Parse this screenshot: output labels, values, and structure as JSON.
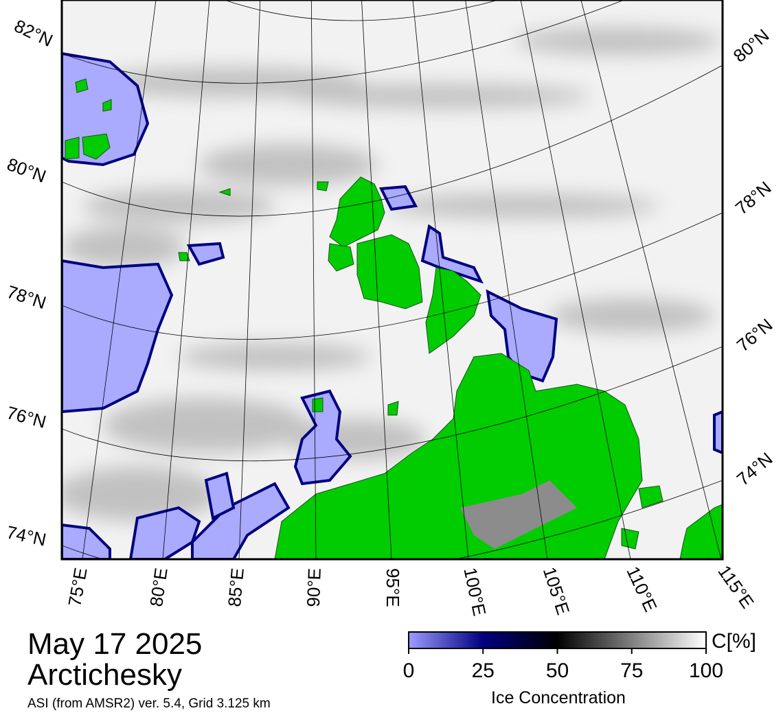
{
  "map": {
    "lat_labels_left": [
      "82°N",
      "80°N",
      "78°N",
      "76°N",
      "74°N"
    ],
    "lat_labels_right": [
      "80°N",
      "78°N",
      "76°N",
      "74°N"
    ],
    "lon_labels": [
      "75°E",
      "80°E",
      "85°E",
      "90°E",
      "95°E",
      "100°E",
      "105°E",
      "110°E",
      "115°E"
    ]
  },
  "title": {
    "date": "May 17 2025",
    "region": "Arctichesky",
    "source": "ASI (from AMSR2) ver. 5.4,  Grid 3.125 km"
  },
  "colorbar": {
    "lim": [
      0,
      100
    ],
    "ticks": [
      0,
      25,
      50,
      75,
      100
    ],
    "unit": "C[%]",
    "label": "Ice Concentration"
  }
}
